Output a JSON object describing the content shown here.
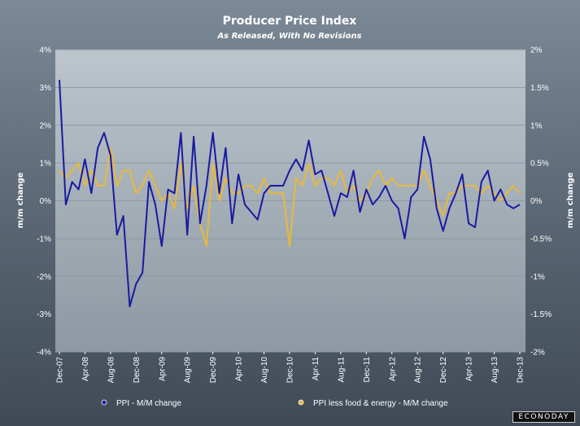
{
  "title": "Producer Price Index",
  "subtitle": "As Released, With No Revisions",
  "brand": "ECONODAY",
  "colors": {
    "ppi": "#1a1aa0",
    "core": "#e8b93a",
    "grid": "#8e9aa6",
    "plot_bg_top": "#bcc5cc",
    "plot_bg_bottom": "#8d98a2"
  },
  "chart_data": {
    "type": "line",
    "ylabel_left": "m/m change",
    "ylabel_right": "m/m change",
    "ylim_left": [
      -4,
      4
    ],
    "ylim_right": [
      -2,
      2
    ],
    "yticks_left": [
      "4%",
      "3%",
      "2%",
      "1%",
      "0%",
      "-1%",
      "-2%",
      "-3%",
      "-4%"
    ],
    "yticks_right": [
      "2%",
      "1.5%",
      "1%",
      "0.5%",
      "0%",
      "-0.5%",
      "-1%",
      "-1.5%",
      "-2%"
    ],
    "x_tick_labels": [
      "Dec-07",
      "Apr-08",
      "Aug-08",
      "Dec-08",
      "Apr-09",
      "Aug-09",
      "Dec-09",
      "Apr-10",
      "Aug-10",
      "Dec-10",
      "Apr-11",
      "Aug-11",
      "Dec-11",
      "Apr-12",
      "Aug-12",
      "Dec-12",
      "Apr-13",
      "Aug-13",
      "Dec-13"
    ],
    "x_start": "Dec-07",
    "x_end": "Dec-13",
    "legend_position": "bottom",
    "grid": true,
    "series": [
      {
        "name": "PPI - M/M change",
        "axis": "left",
        "values": [
          3.2,
          -0.1,
          0.5,
          0.3,
          1.1,
          0.2,
          1.4,
          1.8,
          1.2,
          -0.9,
          -0.4,
          -2.8,
          -2.2,
          -1.9,
          0.5,
          -0.1,
          -1.2,
          0.3,
          0.2,
          1.8,
          -0.9,
          1.7,
          -0.6,
          0.4,
          1.8,
          0.2,
          1.4,
          -0.6,
          0.7,
          -0.1,
          -0.3,
          -0.5,
          0.2,
          0.4,
          0.4,
          0.4,
          0.8,
          1.1,
          0.8,
          1.6,
          0.7,
          0.8,
          0.2,
          -0.4,
          0.2,
          0.1,
          0.8,
          -0.3,
          0.3,
          -0.1,
          0.1,
          0.4,
          0.0,
          -0.2,
          -1.0,
          0.1,
          0.3,
          1.7,
          1.1,
          -0.2,
          -0.8,
          -0.2,
          0.2,
          0.7,
          -0.6,
          -0.7,
          0.5,
          0.8,
          0.0,
          0.3,
          -0.1,
          -0.2,
          -0.1
        ]
      },
      {
        "name": "PPI less food & energy - M/M change",
        "axis": "right",
        "values": [
          0.4,
          0.3,
          0.4,
          0.5,
          0.2,
          0.4,
          0.2,
          0.2,
          0.7,
          0.2,
          0.4,
          0.4,
          0.1,
          0.2,
          0.4,
          0.2,
          0.0,
          0.1,
          -0.1,
          0.5,
          -0.1,
          0.2,
          -0.3,
          -0.6,
          0.5,
          0.0,
          0.3,
          0.1,
          0.1,
          0.2,
          0.2,
          0.1,
          0.3,
          0.1,
          0.1,
          0.1,
          -0.6,
          0.3,
          0.2,
          0.5,
          0.2,
          0.3,
          0.3,
          0.2,
          0.4,
          0.1,
          0.2,
          0.0,
          0.1,
          0.3,
          0.4,
          0.2,
          0.3,
          0.2,
          0.2,
          0.2,
          0.2,
          0.4,
          0.2,
          0.0,
          -0.2,
          0.1,
          0.1,
          0.2,
          0.2,
          0.2,
          0.1,
          0.2,
          0.1,
          0.0,
          0.1,
          0.2,
          0.1
        ]
      }
    ]
  }
}
